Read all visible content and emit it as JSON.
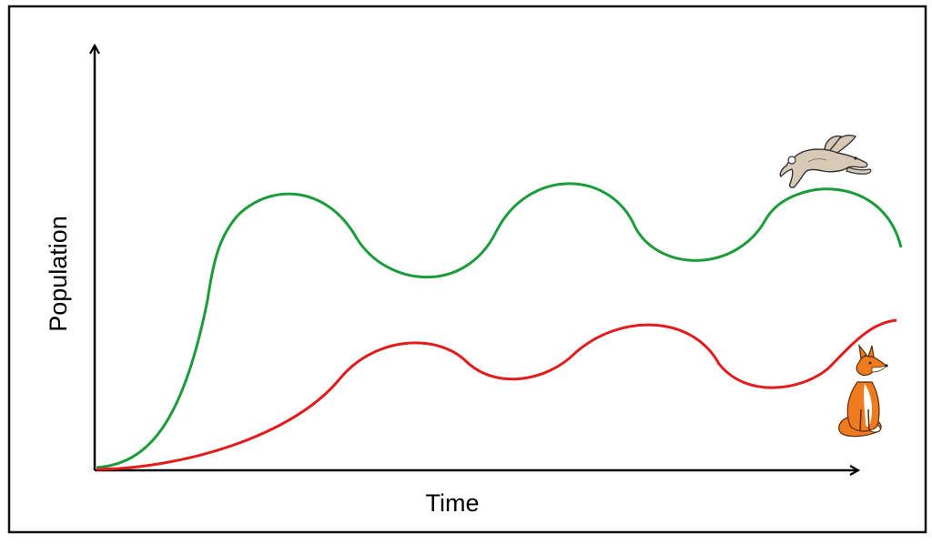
{
  "axes": {
    "x_label": "Time",
    "y_label": "Population"
  },
  "series": [
    {
      "key": "prey",
      "animal_icon": "rabbit-icon",
      "color": "#1a9c3a"
    },
    {
      "key": "predator",
      "animal_icon": "fox-icon",
      "color": "#e31b1b"
    }
  ],
  "colors": {
    "frame": "#111111",
    "axis": "#000000",
    "prey_line": "#1a9c3a",
    "predator_line": "#e31b1b",
    "rabbit_body": "#d8c9b6",
    "fox_body": "#ef7b1e"
  }
}
